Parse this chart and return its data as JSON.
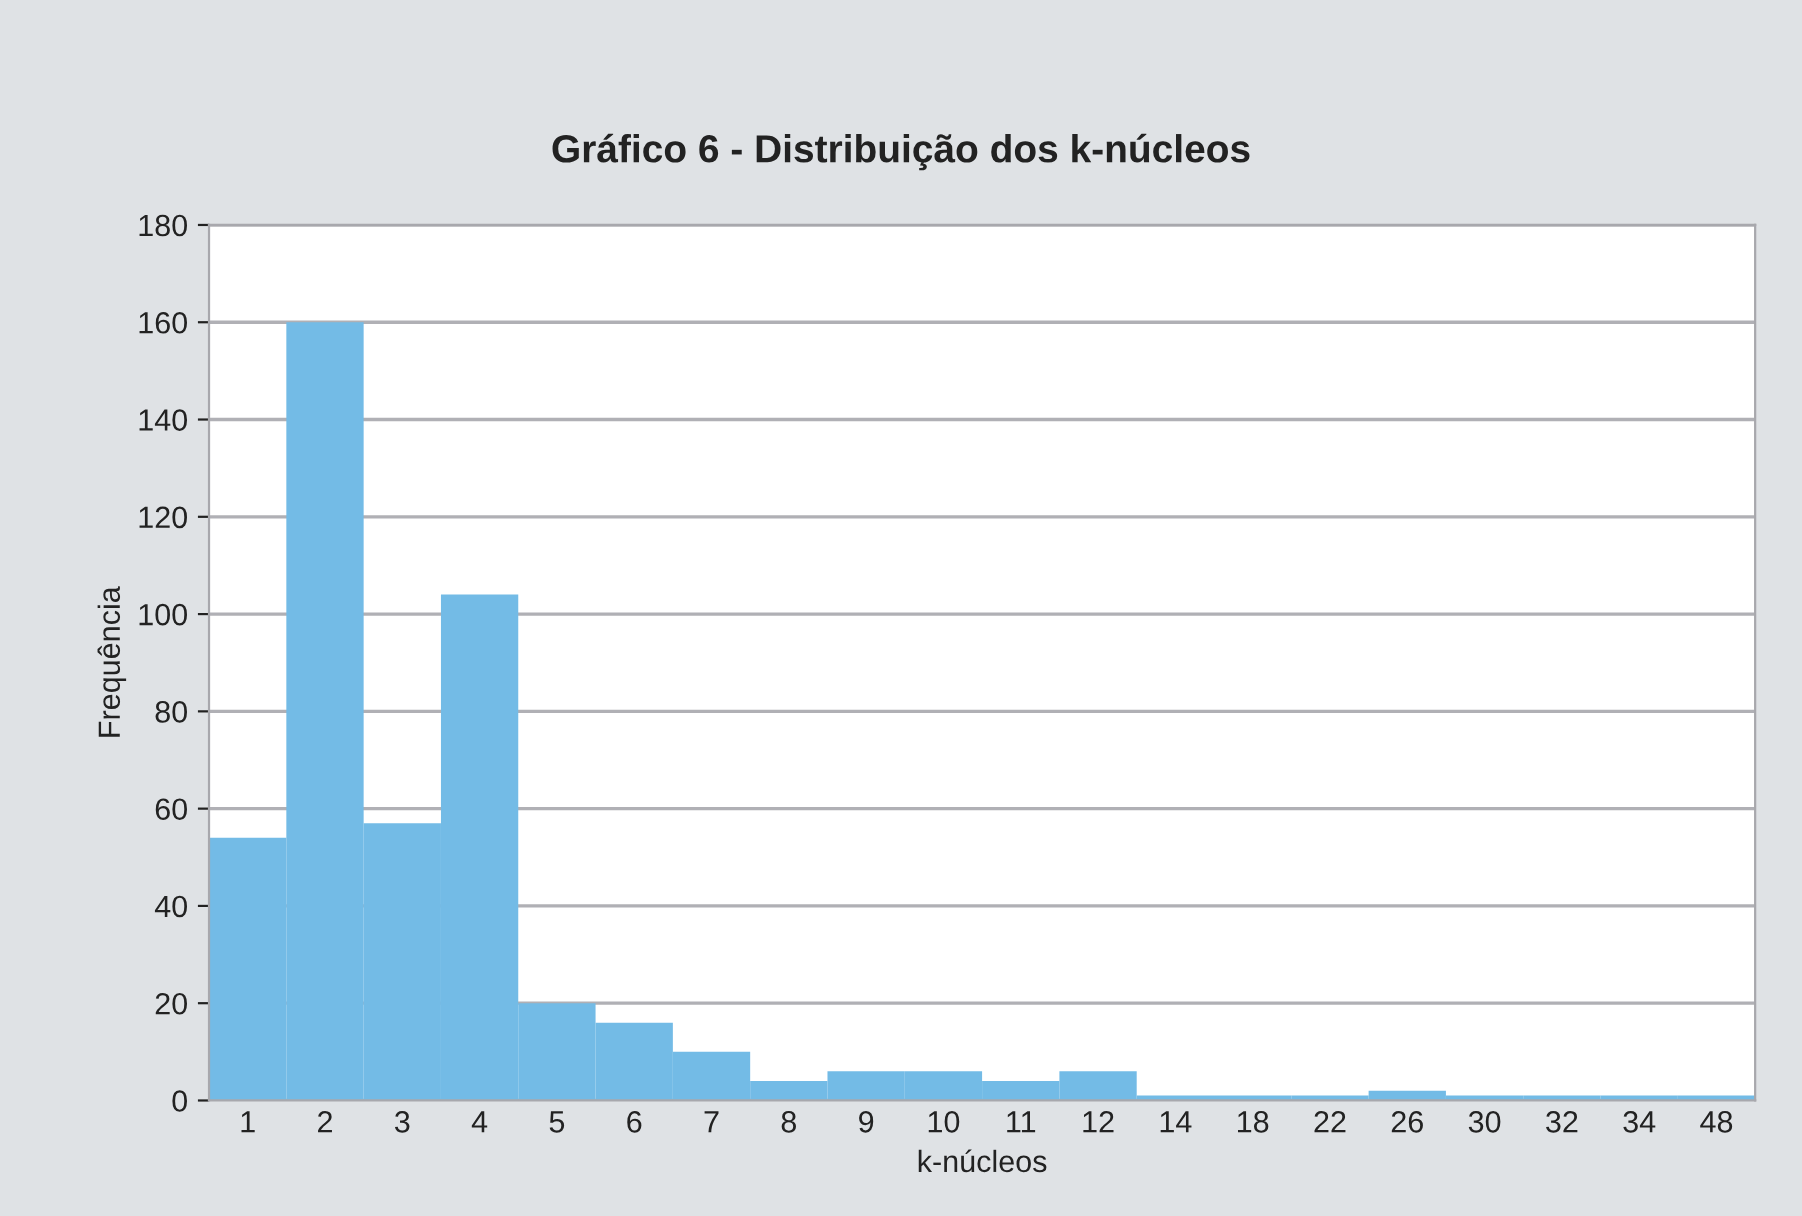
{
  "chart_data": {
    "type": "bar",
    "title": "Gráfico 6 - Distribuição dos k-núcleos",
    "xlabel": "k-núcleos",
    "ylabel": "Frequência",
    "categories": [
      "1",
      "2",
      "3",
      "4",
      "5",
      "6",
      "7",
      "8",
      "9",
      "10",
      "11",
      "12",
      "14",
      "18",
      "22",
      "26",
      "30",
      "32",
      "34",
      "48"
    ],
    "values": [
      54,
      160,
      57,
      104,
      20,
      16,
      10,
      4,
      6,
      6,
      4,
      6,
      1,
      1,
      1,
      2,
      1,
      1,
      1,
      1
    ],
    "color": "#73bbe6",
    "ylim": [
      0,
      180
    ],
    "yticks": [
      0,
      20,
      40,
      60,
      80,
      100,
      120,
      140,
      160,
      180
    ],
    "grid": "y",
    "legend": false
  }
}
